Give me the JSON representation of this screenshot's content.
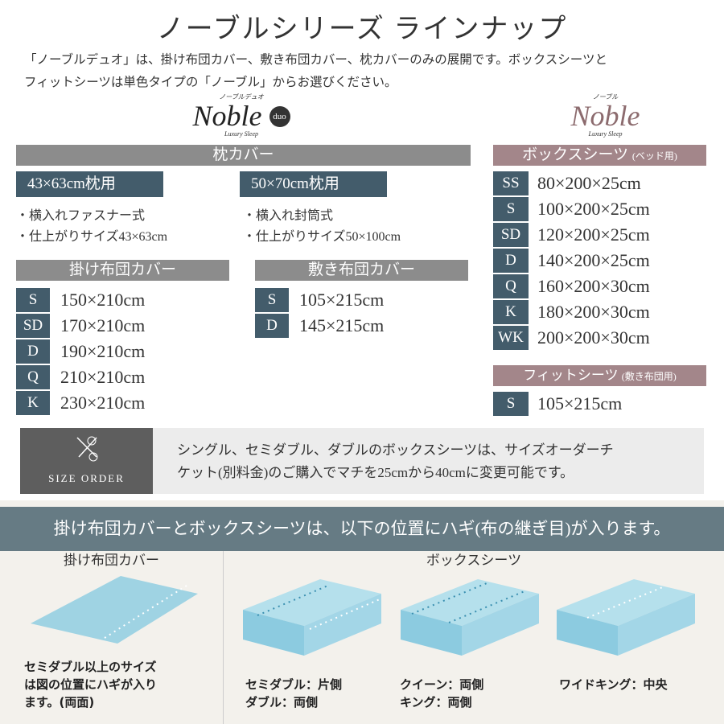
{
  "title": "ノーブルシリーズ ラインナップ",
  "description": [
    "「ノーブルデュオ」は、掛け布団カバー、敷き布団カバー、枕カバーのみの展開です。ボックスシーツと",
    "フィットシーツは単色タイプの「ノーブル」からお選びください。"
  ],
  "logos": {
    "duo": {
      "ruby": "ノーブルデュオ",
      "name": "Noble",
      "badge": "duo",
      "tagline": "Luxury Sleep"
    },
    "noble": {
      "ruby": "ノーブル",
      "name": "Noble",
      "tagline": "Luxury Sleep"
    }
  },
  "colors": {
    "slate": "#435c6b",
    "gray": "#8c8c8c",
    "mauve": "#a3868a",
    "band": "#667b84",
    "illustration": "#9fd3e3"
  },
  "pillow": {
    "header": "枕カバー",
    "a": {
      "tag": "43×63cm枕用",
      "bullets": [
        "・横入れファスナー式",
        "・仕上がりサイズ43×63cm"
      ]
    },
    "b": {
      "tag": "50×70cm枕用",
      "bullets": [
        "・横入れ封筒式",
        "・仕上がりサイズ50×100cm"
      ]
    }
  },
  "duvet": {
    "header": "掛け布団カバー",
    "rows": [
      {
        "size": "S",
        "dim": "150×210cm"
      },
      {
        "size": "SD",
        "dim": "170×210cm"
      },
      {
        "size": "D",
        "dim": "190×210cm"
      },
      {
        "size": "Q",
        "dim": "210×210cm"
      },
      {
        "size": "K",
        "dim": "230×210cm"
      }
    ]
  },
  "mattress": {
    "header": "敷き布団カバー",
    "rows": [
      {
        "size": "S",
        "dim": "105×215cm"
      },
      {
        "size": "D",
        "dim": "145×215cm"
      }
    ]
  },
  "box": {
    "header": "ボックスシーツ",
    "sub": "(ベッド用)",
    "rows": [
      {
        "size": "SS",
        "dim": "80×200×25cm"
      },
      {
        "size": "S",
        "dim": "100×200×25cm"
      },
      {
        "size": "SD",
        "dim": "120×200×25cm"
      },
      {
        "size": "D",
        "dim": "140×200×25cm"
      },
      {
        "size": "Q",
        "dim": "160×200×30cm"
      },
      {
        "size": "K",
        "dim": "180×200×30cm"
      },
      {
        "size": "WK",
        "dim": "200×200×30cm"
      }
    ]
  },
  "fit": {
    "header": "フィットシーツ",
    "sub": "(敷き布団用)",
    "rows": [
      {
        "size": "S",
        "dim": "105×215cm"
      }
    ]
  },
  "size_order": {
    "label": "SIZE ORDER",
    "text": [
      "シングル、セミダブル、ダブルのボックスシーツは、サイズオーダーチ",
      "ケット(別料金)のご購入でマチを25cmから40cmに変更可能です。"
    ]
  },
  "seams": {
    "banner": "掛け布団カバーとボックスシーツは、以下の位置にハギ(布の継ぎ目)が入ります。",
    "duvet_title": "掛け布団カバー",
    "duvet_caption": [
      "セミダブル以上のサイズ",
      "は図の位置にハギが入り",
      "ます。(両面)"
    ],
    "box_title": "ボックスシーツ",
    "captions": [
      [
        "セミダブル：片側",
        "ダブル：両側"
      ],
      [
        "クイーン：両側",
        "キング：両側"
      ],
      [
        "ワイドキング：中央"
      ]
    ]
  }
}
